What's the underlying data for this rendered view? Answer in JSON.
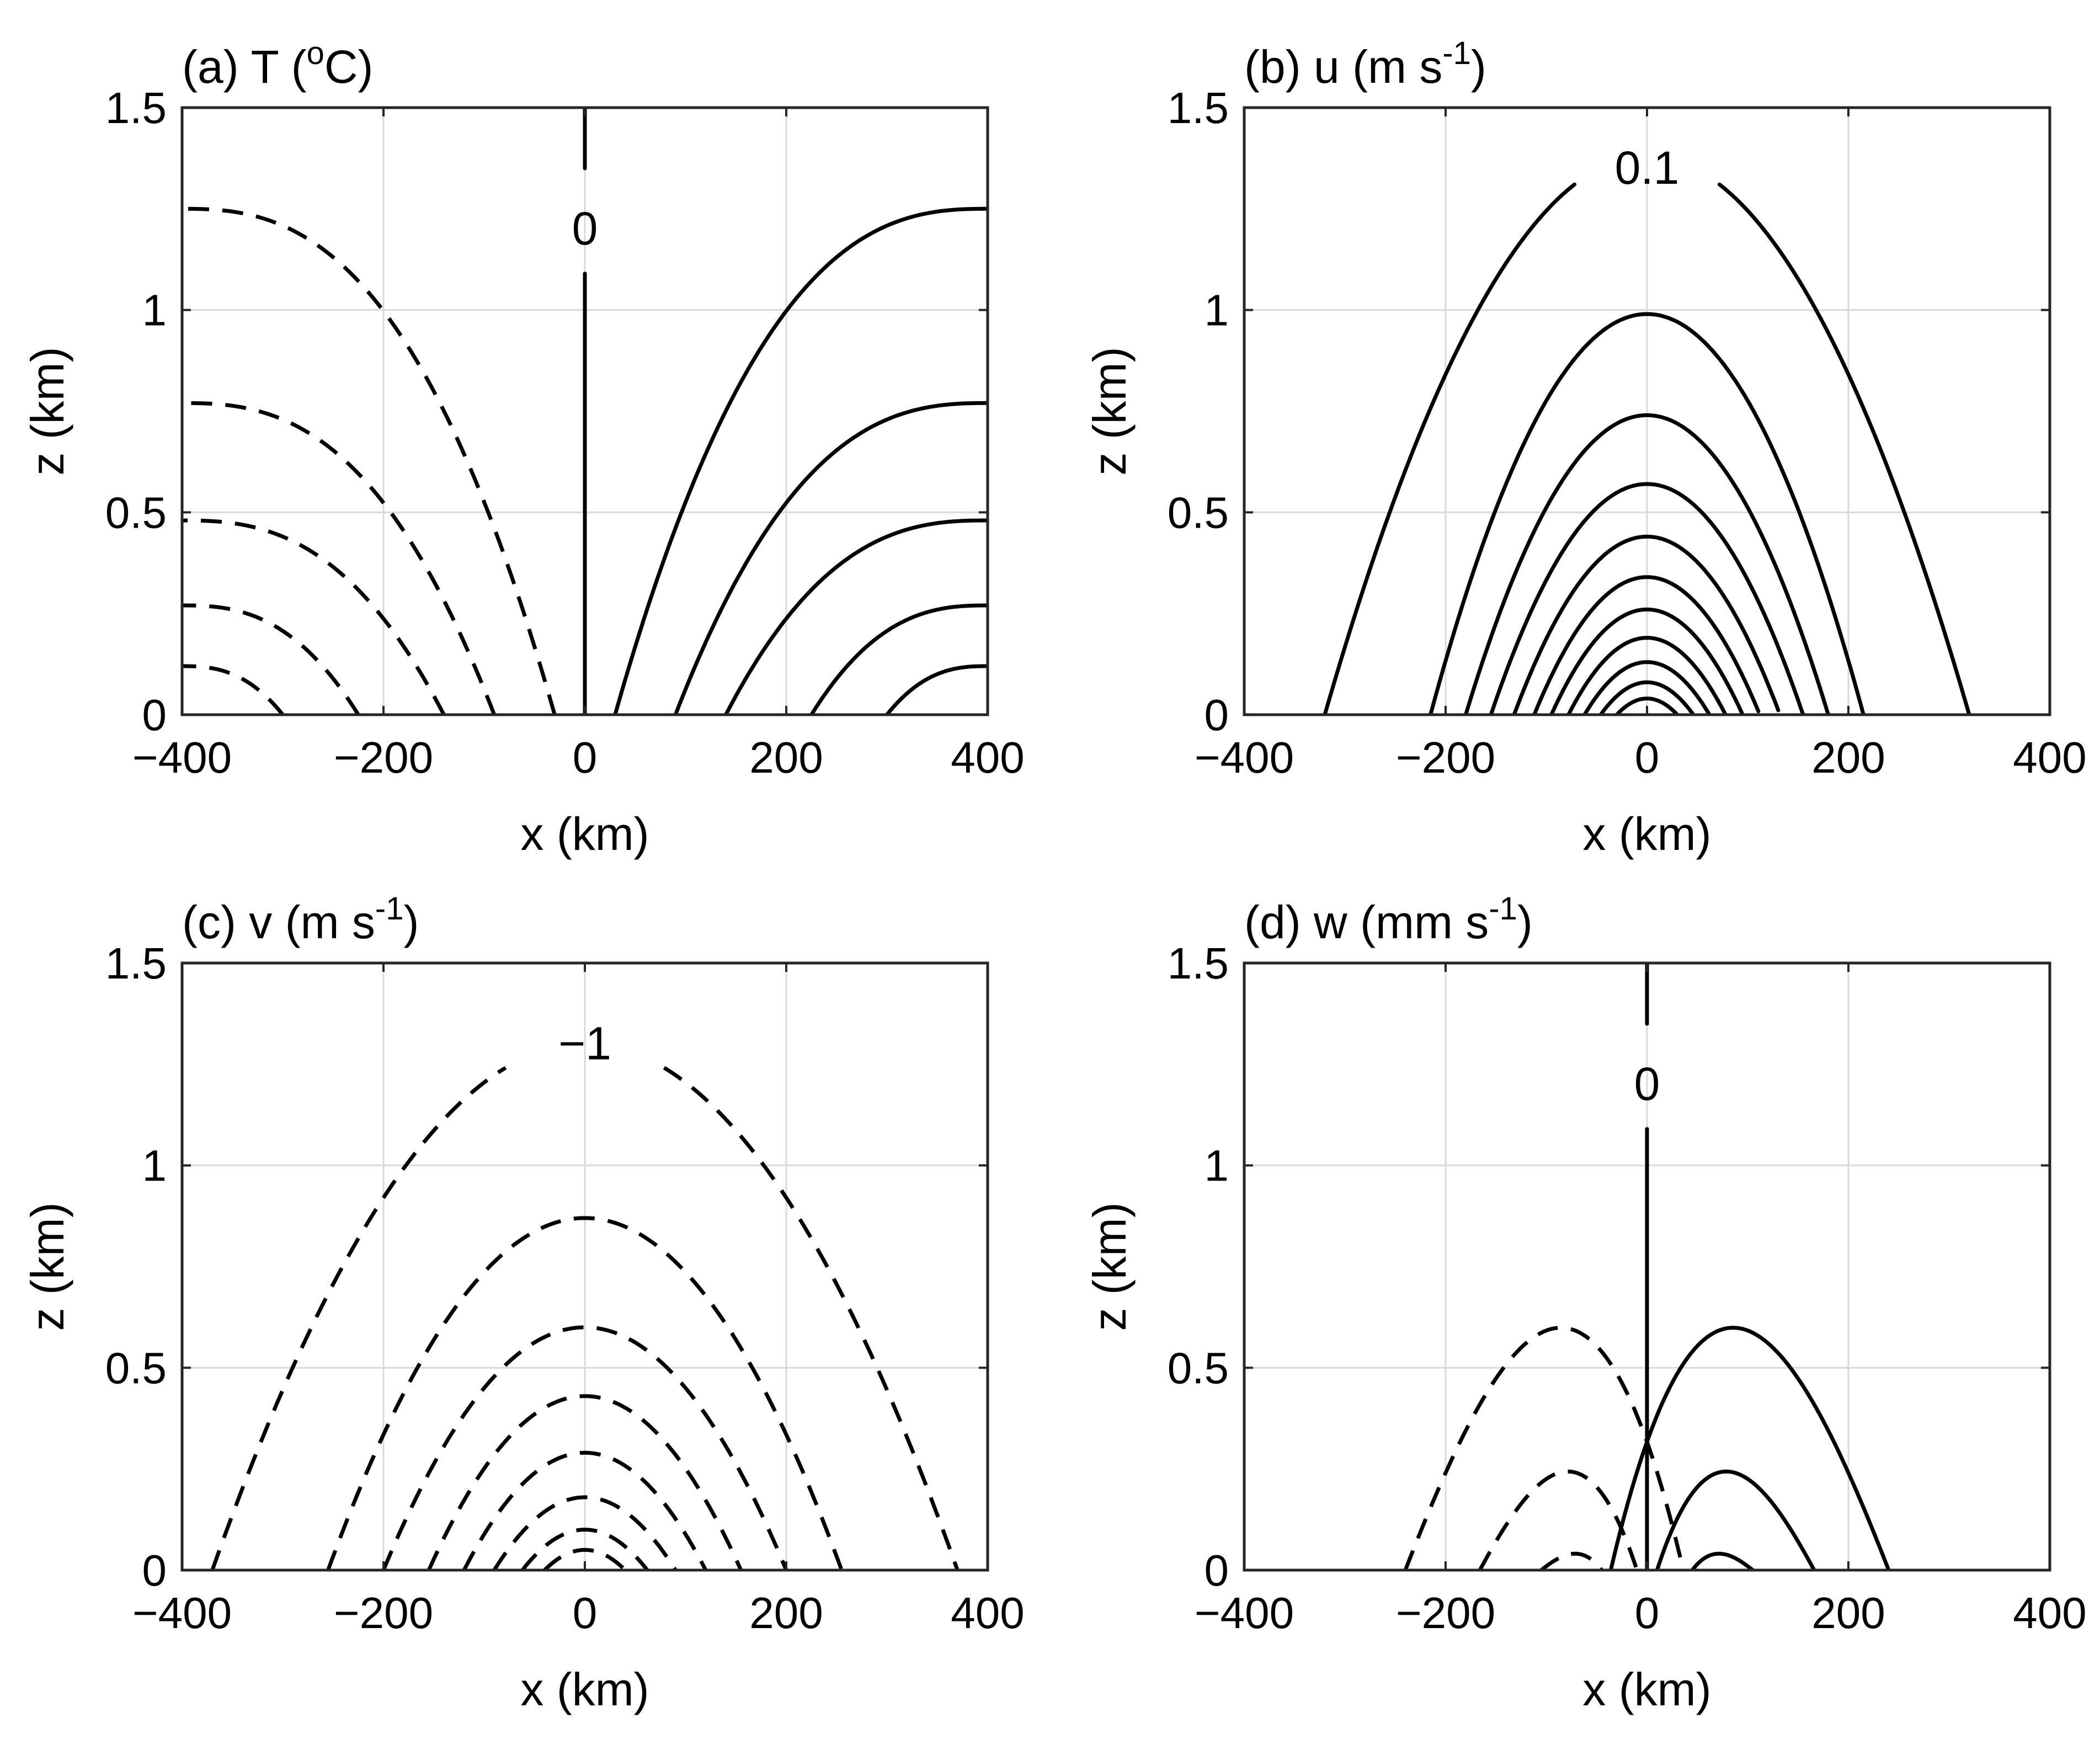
{
  "chart_data": [
    {
      "panel": "a",
      "type": "contour",
      "title": "(a) T (",
      "title_sup": "o",
      "title_tail": "C)",
      "xlabel": "x (km)",
      "ylabel": "z (km)",
      "xlim": [
        -400,
        400
      ],
      "ylim": [
        0,
        1.5
      ],
      "xticks": [
        -400,
        -200,
        0,
        200,
        400
      ],
      "xticklabels": [
        "−400",
        "−200",
        "0",
        "200",
        "400"
      ],
      "yticks": [
        0,
        0.5,
        1,
        1.5
      ],
      "yticklabels": [
        "0",
        "0.5",
        "1",
        "1.5"
      ],
      "grid": true,
      "contour_labels": [
        {
          "text": "0",
          "x": 0,
          "z": 1.2
        }
      ],
      "field": "temperature"
    },
    {
      "panel": "b",
      "type": "contour",
      "title": "(b) u (m s",
      "title_sup": "-1",
      "title_tail": ")",
      "xlabel": "x (km)",
      "ylabel": "z (km)",
      "xlim": [
        -400,
        400
      ],
      "ylim": [
        0,
        1.5
      ],
      "xticks": [
        -400,
        -200,
        0,
        200,
        400
      ],
      "xticklabels": [
        "−400",
        "−200",
        "0",
        "200",
        "400"
      ],
      "yticks": [
        0,
        0.5,
        1,
        1.5
      ],
      "yticklabels": [
        "0",
        "0.5",
        "1",
        "1.5"
      ],
      "grid": true,
      "contour_labels": [
        {
          "text": "0.1",
          "x": 0,
          "z": 1.35
        }
      ],
      "field": "u"
    },
    {
      "panel": "c",
      "type": "contour",
      "title": "(c) v (m s",
      "title_sup": "-1",
      "title_tail": ")",
      "xlabel": "x (km)",
      "ylabel": "z (km)",
      "xlim": [
        -400,
        400
      ],
      "ylim": [
        0,
        1.5
      ],
      "xticks": [
        -400,
        -200,
        0,
        200,
        400
      ],
      "xticklabels": [
        "−400",
        "−200",
        "0",
        "200",
        "400"
      ],
      "yticks": [
        0,
        0.5,
        1,
        1.5
      ],
      "yticklabels": [
        "0",
        "0.5",
        "1",
        "1.5"
      ],
      "grid": true,
      "contour_labels": [
        {
          "text": "−1",
          "x": 0,
          "z": 1.3
        }
      ],
      "field": "v"
    },
    {
      "panel": "d",
      "type": "contour",
      "title": "(d) w (mm s",
      "title_sup": "-1",
      "title_tail": ")",
      "xlabel": "x (km)",
      "ylabel": "z (km)",
      "xlim": [
        -400,
        400
      ],
      "ylim": [
        0,
        1.5
      ],
      "xticks": [
        -400,
        -200,
        0,
        200,
        400
      ],
      "xticklabels": [
        "−400",
        "−200",
        "0",
        "200",
        "400"
      ],
      "yticks": [
        0,
        0.5,
        1,
        1.5
      ],
      "yticklabels": [
        "0",
        "0.5",
        "1",
        "1.5"
      ],
      "grid": true,
      "contour_labels": [
        {
          "text": "0",
          "x": 0,
          "z": 1.2
        }
      ],
      "field": "w"
    }
  ]
}
